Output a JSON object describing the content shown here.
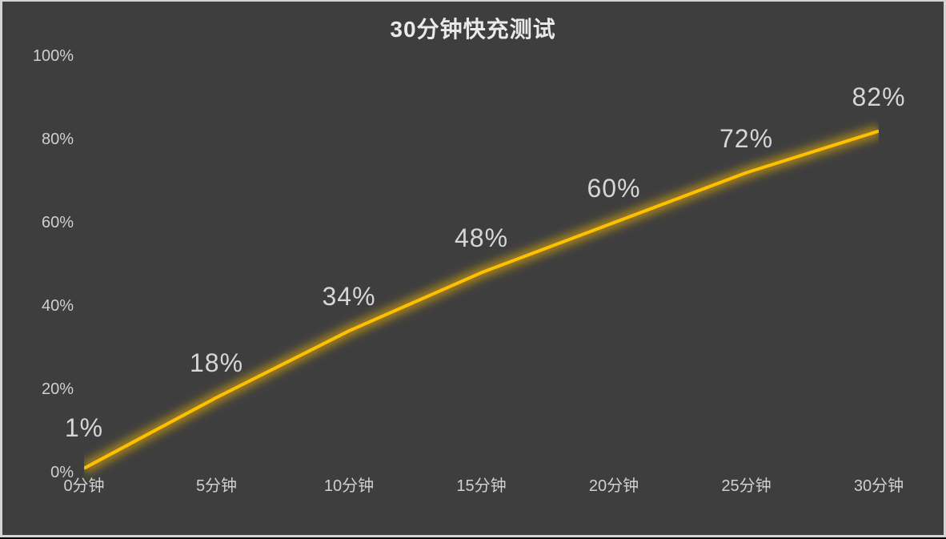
{
  "page": {
    "background_color": "#3e3e3e",
    "frame_border_color": "#d4d4d4",
    "bottom_edge_color": "#050505",
    "title_color": "#e9e9e9",
    "axis_label_color": "#d0d0d0",
    "value_label_color": "#d6d6d6"
  },
  "chart_data": {
    "type": "line",
    "title": "30分钟快充测试",
    "categories": [
      "0分钟",
      "5分钟",
      "10分钟",
      "15分钟",
      "20分钟",
      "25分钟",
      "30分钟"
    ],
    "values": [
      1,
      18,
      34,
      48,
      60,
      72,
      82
    ],
    "point_labels": [
      "1%",
      "18%",
      "34%",
      "48%",
      "60%",
      "72%",
      "82%"
    ],
    "y_ticks": [
      {
        "value": 0,
        "label": "0%"
      },
      {
        "value": 20,
        "label": "20%"
      },
      {
        "value": 40,
        "label": "40%"
      },
      {
        "value": 60,
        "label": "60%"
      },
      {
        "value": 80,
        "label": "80%"
      },
      {
        "value": 100,
        "label": "100%"
      }
    ],
    "ylim": [
      0,
      100
    ],
    "xlabel": "",
    "ylabel": "",
    "grid": false,
    "legend_position": "none",
    "line_color": "#ffc000",
    "line_glow": true
  }
}
